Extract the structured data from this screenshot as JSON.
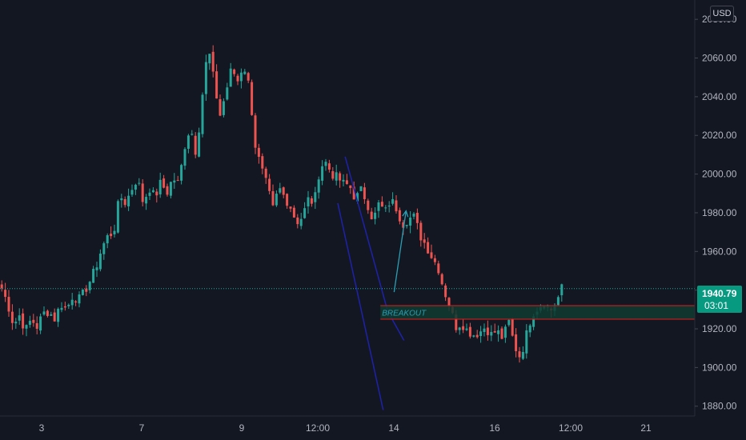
{
  "currency_button": "USD",
  "last_price": {
    "value": 1940.79,
    "label": "1940.79",
    "countdown": "03:01"
  },
  "chart_data": {
    "type": "candlestick",
    "instrument_currency": "USD",
    "ylim": [
      1877,
      2090
    ],
    "y_ticks": [
      1880,
      1900,
      1920,
      1940,
      1960,
      1980,
      2000,
      2020,
      2040,
      2060,
      2080
    ],
    "y_tick_labels": [
      "1880.00",
      "1900.00",
      "1920.00",
      "1940.00",
      "1960.00",
      "1980.00",
      "2000.00",
      "2020.00",
      "2040.00",
      "2060.00",
      "2080.00"
    ],
    "x_ticks": [
      "3",
      "7",
      "9",
      "12:00",
      "14",
      "16",
      "12:00",
      "21"
    ],
    "grid": false,
    "colors": {
      "up": "#26a69a",
      "down": "#ef5350",
      "channel": "#1e22aa",
      "arrow": "#2a9fb4",
      "zone_border": "#e01c1c",
      "zone_fill": "#0f3b30",
      "price_line": "#26a69a"
    },
    "waypoints": [
      1941,
      1933,
      1922,
      1927,
      1919,
      1925,
      1921,
      1928,
      1929,
      1925,
      1933,
      1930,
      1937,
      1935,
      1939,
      1945,
      1952,
      1962,
      1968,
      1970,
      1989,
      1985,
      1992,
      1998,
      1985,
      1993,
      1988,
      1996,
      1990,
      1998,
      1995,
      2014,
      2025,
      2010,
      2040,
      2066,
      2048,
      2030,
      2042,
      2055,
      2048,
      2057,
      2045,
      2015,
      2003,
      1994,
      1982,
      1993,
      1988,
      1983,
      1975,
      1978,
      1987,
      1985,
      2004,
      2006,
      2000,
      1998,
      1995,
      1994,
      1987,
      1992,
      1985,
      1976,
      1985,
      1980,
      1987,
      1982,
      1974,
      1977,
      1978,
      1968,
      1963,
      1957,
      1952,
      1940,
      1932,
      1921,
      1923,
      1919,
      1917,
      1918,
      1921,
      1917,
      1919,
      1915,
      1924,
      1911,
      1905,
      1917,
      1928,
      1931,
      1934,
      1929,
      1933,
      1941
    ],
    "annotations": [
      {
        "type": "upper-channel-line",
        "from": [
          97.5,
          2009
        ],
        "to": [
          109.6,
          1929
        ]
      },
      {
        "type": "lower-channel-line",
        "from": [
          95.4,
          1985
        ],
        "to": [
          108.3,
          1878
        ]
      },
      {
        "type": "extension-line",
        "from": [
          109.6,
          1929
        ],
        "to": [
          114.2,
          1914
        ]
      },
      {
        "type": "arrow",
        "from": [
          111.4,
          1939
        ],
        "to": [
          114.8,
          1981
        ]
      },
      {
        "type": "rectangle",
        "label": "BREAKOUT",
        "y_range": [
          1925,
          1932
        ],
        "x_from": 107.5
      }
    ]
  }
}
